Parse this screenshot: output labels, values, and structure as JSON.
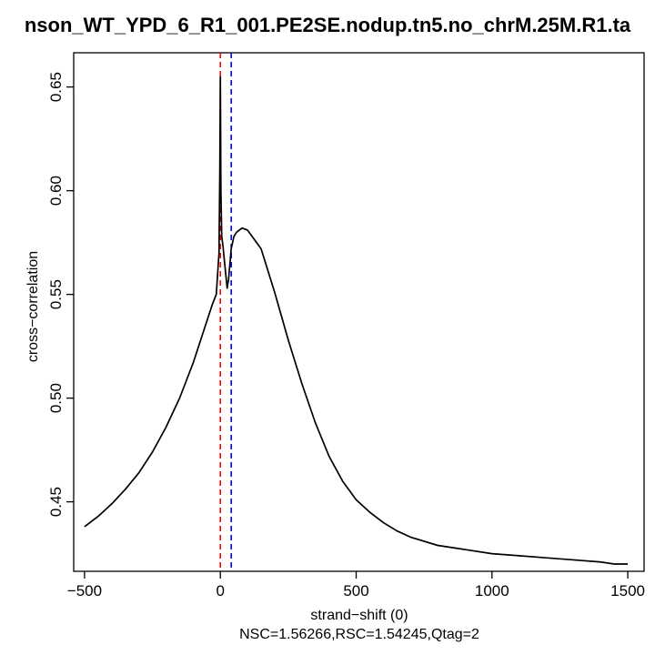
{
  "chart_data": {
    "type": "line",
    "title": "nson_WT_YPD_6_R1_001.PE2SE.nodup.tn5.no_chrM.25M.R1.ta",
    "xlabel": "strand−shift (0)",
    "subtitle": "NSC=1.56266,RSC=1.54245,Qtag=2",
    "ylabel": "cross−correlation",
    "xlim": [
      -540,
      1560
    ],
    "ylim": [
      0.4165,
      0.6665
    ],
    "xticks": [
      -500,
      0,
      500,
      1000,
      1500
    ],
    "xtick_labels": [
      "−500",
      "0",
      "500",
      "1000",
      "1500"
    ],
    "yticks": [
      0.45,
      0.5,
      0.55,
      0.6,
      0.65
    ],
    "ytick_labels": [
      "0.45",
      "0.50",
      "0.55",
      "0.60",
      "0.65"
    ],
    "grid": false,
    "vlines": [
      {
        "x": 0,
        "color": "#ff0000"
      },
      {
        "x": 40,
        "color": "#0000ff"
      }
    ],
    "series": [
      {
        "color": "#000000",
        "x": [
          -500,
          -450,
          -400,
          -350,
          -300,
          -250,
          -200,
          -150,
          -100,
          -60,
          -30,
          -15,
          -5,
          -2,
          0,
          2,
          5,
          10,
          15,
          25,
          30,
          40,
          50,
          60,
          80,
          100,
          150,
          200,
          250,
          300,
          350,
          400,
          450,
          500,
          550,
          600,
          650,
          700,
          800,
          900,
          1000,
          1100,
          1200,
          1300,
          1400,
          1450,
          1500
        ],
        "y": [
          0.438,
          0.443,
          0.449,
          0.456,
          0.464,
          0.474,
          0.486,
          0.5,
          0.517,
          0.533,
          0.545,
          0.55,
          0.57,
          0.61,
          0.655,
          0.6,
          0.578,
          0.573,
          0.566,
          0.553,
          0.557,
          0.572,
          0.578,
          0.58,
          0.582,
          0.581,
          0.572,
          0.551,
          0.528,
          0.507,
          0.488,
          0.472,
          0.46,
          0.451,
          0.445,
          0.44,
          0.436,
          0.433,
          0.429,
          0.427,
          0.425,
          0.424,
          0.423,
          0.422,
          0.421,
          0.42,
          0.42
        ]
      }
    ]
  }
}
